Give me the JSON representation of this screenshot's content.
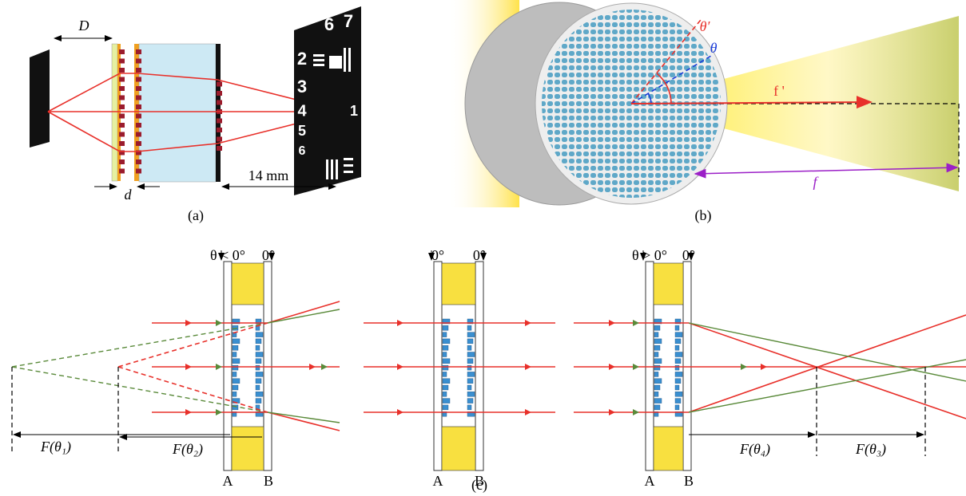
{
  "panel_a": {
    "label": "(a)",
    "D": "D",
    "d": "d",
    "distance": "14 mm",
    "chart_digits": [
      "6",
      "7",
      "2",
      "3",
      "4",
      "5",
      "6",
      "1"
    ]
  },
  "panel_b": {
    "label": "(b)",
    "theta_prime": "θ′",
    "theta": "θ",
    "f_prime": "f '",
    "f": "f"
  },
  "panel_c": {
    "label": "(c)",
    "left": {
      "angle_A": "θ < 0°",
      "angle_B": "0°",
      "A": "A",
      "B": "B",
      "F1": "F(θ₁)",
      "F2": "F(θ₂)"
    },
    "middle": {
      "angle_A": "0°",
      "angle_B": "0°",
      "A": "A",
      "B": "B"
    },
    "right": {
      "angle_A": "θ > 0°",
      "angle_B": "0°",
      "A": "A",
      "B": "B",
      "F4": "F(θ₄)",
      "F3": "F(θ₃)"
    }
  }
}
